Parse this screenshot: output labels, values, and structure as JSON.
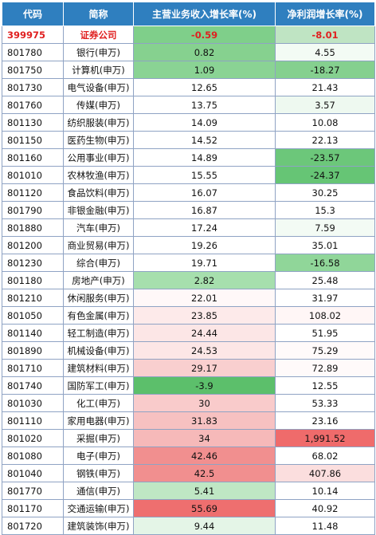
{
  "table": {
    "headers": [
      "代码",
      "简称",
      "主营业务收入增长率(%)",
      "净利润增长率(%)"
    ],
    "rows": [
      {
        "code": "399975",
        "name": "证券公司",
        "revenue_growth": "-0.59",
        "profit_growth": "-8.01",
        "revenue_bg": "#7fcf8a",
        "profit_bg": "#bfe4c3"
      },
      {
        "code": "801780",
        "name": "银行(申万)",
        "revenue_growth": "0.82",
        "profit_growth": "4.55",
        "revenue_bg": "#86d18f",
        "profit_bg": "#f3fbf4"
      },
      {
        "code": "801750",
        "name": "计算机(申万)",
        "revenue_growth": "1.09",
        "profit_growth": "-18.27",
        "revenue_bg": "#8ad394",
        "profit_bg": "#85d08f"
      },
      {
        "code": "801730",
        "name": "电气设备(申万)",
        "revenue_growth": "12.65",
        "profit_growth": "21.43",
        "revenue_bg": "#ffffff",
        "profit_bg": "#ffffff"
      },
      {
        "code": "801760",
        "name": "传媒(申万)",
        "revenue_growth": "13.75",
        "profit_growth": "3.57",
        "revenue_bg": "#ffffff",
        "profit_bg": "#eef9f0"
      },
      {
        "code": "801130",
        "name": "纺织服装(申万)",
        "revenue_growth": "14.09",
        "profit_growth": "10.08",
        "revenue_bg": "#ffffff",
        "profit_bg": "#ffffff"
      },
      {
        "code": "801150",
        "name": "医药生物(申万)",
        "revenue_growth": "14.52",
        "profit_growth": "22.13",
        "revenue_bg": "#ffffff",
        "profit_bg": "#ffffff"
      },
      {
        "code": "801160",
        "name": "公用事业(申万)",
        "revenue_growth": "14.89",
        "profit_growth": "-23.57",
        "revenue_bg": "#ffffff",
        "profit_bg": "#6cc77a"
      },
      {
        "code": "801010",
        "name": "农林牧渔(申万)",
        "revenue_growth": "15.55",
        "profit_growth": "-24.37",
        "revenue_bg": "#ffffff",
        "profit_bg": "#66c575"
      },
      {
        "code": "801120",
        "name": "食品饮料(申万)",
        "revenue_growth": "16.07",
        "profit_growth": "30.25",
        "revenue_bg": "#ffffff",
        "profit_bg": "#ffffff"
      },
      {
        "code": "801790",
        "name": "非银金融(申万)",
        "revenue_growth": "16.87",
        "profit_growth": "15.3",
        "revenue_bg": "#ffffff",
        "profit_bg": "#ffffff"
      },
      {
        "code": "801880",
        "name": "汽车(申万)",
        "revenue_growth": "17.24",
        "profit_growth": "7.59",
        "revenue_bg": "#ffffff",
        "profit_bg": "#f3fbf4"
      },
      {
        "code": "801200",
        "name": "商业贸易(申万)",
        "revenue_growth": "19.26",
        "profit_growth": "35.01",
        "revenue_bg": "#ffffff",
        "profit_bg": "#ffffff"
      },
      {
        "code": "801230",
        "name": "综合(申万)",
        "revenue_growth": "19.71",
        "profit_growth": "-16.58",
        "revenue_bg": "#ffffff",
        "profit_bg": "#90d699"
      },
      {
        "code": "801180",
        "name": "房地产(申万)",
        "revenue_growth": "2.82",
        "profit_growth": "25.48",
        "revenue_bg": "#a6dfad",
        "profit_bg": "#ffffff"
      },
      {
        "code": "801210",
        "name": "休闲服务(申万)",
        "revenue_growth": "22.01",
        "profit_growth": "31.97",
        "revenue_bg": "#fff8f8",
        "profit_bg": "#ffffff"
      },
      {
        "code": "801050",
        "name": "有色金属(申万)",
        "revenue_growth": "23.85",
        "profit_growth": "108.02",
        "revenue_bg": "#fdeaea",
        "profit_bg": "#fff6f6"
      },
      {
        "code": "801140",
        "name": "轻工制造(申万)",
        "revenue_growth": "24.44",
        "profit_growth": "51.95",
        "revenue_bg": "#fce6e6",
        "profit_bg": "#ffffff"
      },
      {
        "code": "801890",
        "name": "机械设备(申万)",
        "revenue_growth": "24.53",
        "profit_growth": "75.29",
        "revenue_bg": "#fce6e6",
        "profit_bg": "#fffafa"
      },
      {
        "code": "801710",
        "name": "建筑材料(申万)",
        "revenue_growth": "29.17",
        "profit_growth": "72.89",
        "revenue_bg": "#f9cfcf",
        "profit_bg": "#fffafa"
      },
      {
        "code": "801740",
        "name": "国防军工(申万)",
        "revenue_growth": "-3.9",
        "profit_growth": "12.55",
        "revenue_bg": "#5cbf6b",
        "profit_bg": "#ffffff"
      },
      {
        "code": "801030",
        "name": "化工(申万)",
        "revenue_growth": "30",
        "profit_growth": "53.33",
        "revenue_bg": "#f9cbcb",
        "profit_bg": "#ffffff"
      },
      {
        "code": "801110",
        "name": "家用电器(申万)",
        "revenue_growth": "31.83",
        "profit_growth": "23.16",
        "revenue_bg": "#f7c1c1",
        "profit_bg": "#ffffff"
      },
      {
        "code": "801020",
        "name": "采掘(申万)",
        "revenue_growth": "34",
        "profit_growth": "1,991.52",
        "revenue_bg": "#f6b9b9",
        "profit_bg": "#ef6b6b"
      },
      {
        "code": "801080",
        "name": "电子(申万)",
        "revenue_growth": "42.46",
        "profit_growth": "68.02",
        "revenue_bg": "#f18f8f",
        "profit_bg": "#ffffff"
      },
      {
        "code": "801040",
        "name": "钢铁(申万)",
        "revenue_growth": "42.5",
        "profit_growth": "407.86",
        "revenue_bg": "#f18f8f",
        "profit_bg": "#fbdede"
      },
      {
        "code": "801770",
        "name": "通信(申万)",
        "revenue_growth": "5.41",
        "profit_growth": "10.14",
        "revenue_bg": "#bfe7c4",
        "profit_bg": "#ffffff"
      },
      {
        "code": "801170",
        "name": "交通运输(申万)",
        "revenue_growth": "55.69",
        "profit_growth": "40.92",
        "revenue_bg": "#ee6f6f",
        "profit_bg": "#ffffff"
      },
      {
        "code": "801720",
        "name": "建筑装饰(申万)",
        "revenue_growth": "9.44",
        "profit_growth": "11.48",
        "revenue_bg": "#e4f5e7",
        "profit_bg": "#ffffff"
      }
    ]
  }
}
